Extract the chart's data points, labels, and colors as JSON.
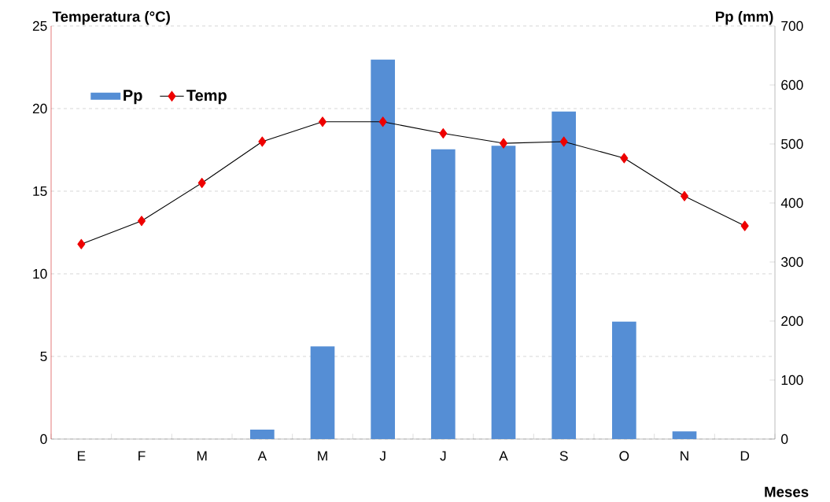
{
  "chart_data": {
    "type": "bar",
    "xlabel": "Meses",
    "ylabel": "Temperatura (°C)",
    "y2label": "Pp (mm)",
    "categories": [
      "E",
      "F",
      "M",
      "A",
      "M",
      "J",
      "J",
      "A",
      "S",
      "O",
      "N",
      "D"
    ],
    "series": [
      {
        "name": "Pp",
        "axis": "y2",
        "color": "#558ed5",
        "values": [
          0,
          0,
          0,
          16,
          157,
          643,
          491,
          497,
          555,
          199,
          13,
          0
        ]
      },
      {
        "name": "Temp",
        "type": "line",
        "color": "#ee0000",
        "marker": "diamond",
        "values": [
          11.8,
          13.2,
          15.5,
          18.0,
          19.2,
          19.2,
          18.5,
          17.9,
          18.0,
          17.0,
          14.7,
          12.9
        ]
      }
    ],
    "ylim": [
      0,
      25
    ],
    "yticks": [
      0,
      5,
      10,
      15,
      20,
      25
    ],
    "y2lim": [
      0,
      700
    ],
    "y2ticks": [
      0,
      100,
      200,
      300,
      400,
      500,
      600,
      700
    ],
    "grid": "y",
    "legend": "top left"
  }
}
